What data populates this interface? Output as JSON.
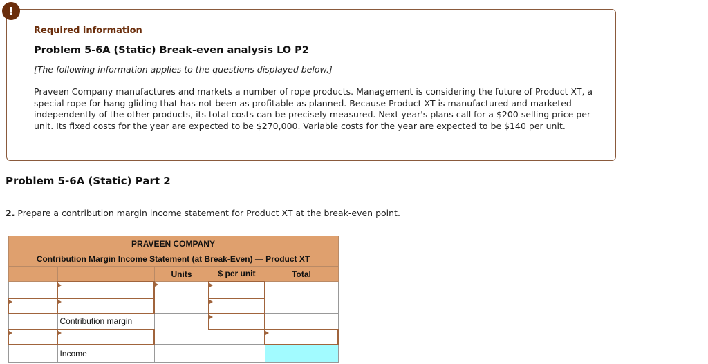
{
  "alert_icon": "exclamation-icon",
  "info": {
    "required": "Required information",
    "title": "Problem 5-6A (Static) Break-even analysis LO P2",
    "note": "[The following information applies to the questions displayed below.]",
    "body": "Praveen Company manufactures and markets a number of rope products. Management is considering the future of Product XT, a special rope for hang gliding that has not been as profitable as planned. Because Product XT is manufactured and marketed independently of the other products, its total costs can be precisely measured. Next year's plans call for a $200 selling price per unit. Its fixed costs for the year are expected to be $270,000. Variable costs for the year are expected to be $140 per unit."
  },
  "part": "Problem 5-6A (Static) Part 2",
  "question": {
    "number": "2.",
    "text": " Prepare a contribution margin income statement for Product XT at the break-even point."
  },
  "table": {
    "company": "PRAVEEN COMPANY",
    "title": "Contribution Margin Income Statement (at Break-Even) — Product XT",
    "headers": [
      "",
      "",
      "Units",
      "$ per unit",
      "Total"
    ],
    "labels": {
      "contribution_margin": "Contribution margin",
      "income": "Income"
    }
  },
  "colors": {
    "header": "#dfa06e",
    "accent": "#6b2e0c",
    "result_cell": "#a2fbff"
  }
}
